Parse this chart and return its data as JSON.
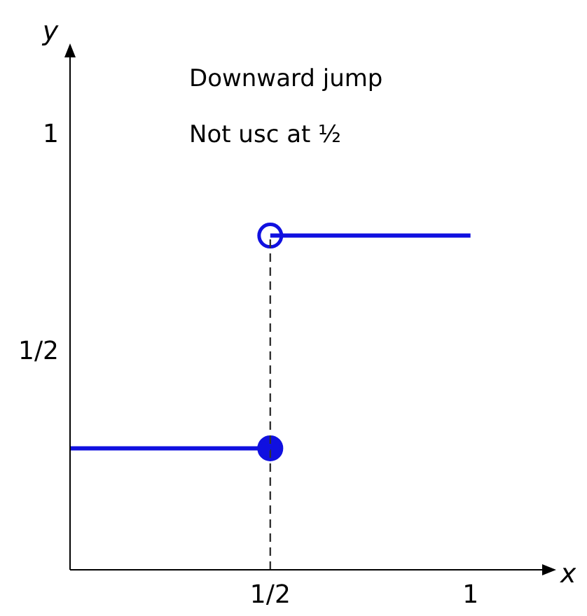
{
  "chart_data": {
    "type": "line",
    "xlabel": "x",
    "ylabel": "y",
    "annotations": [
      "Downward jump",
      "Not usc at ½"
    ],
    "xlim": [
      0,
      1.2
    ],
    "ylim": [
      0,
      1.2
    ],
    "xticks": [
      {
        "value": 0.5,
        "label": "1/2"
      },
      1
    ],
    "yticks": [
      {
        "value": 0.5,
        "label": "1/2"
      },
      1
    ],
    "grid": false,
    "legend": false,
    "series": [
      {
        "type": "line",
        "color": "#1010e0",
        "x": [
          0,
          0.5
        ],
        "values": [
          0.28,
          0.28
        ],
        "marker": "none"
      },
      {
        "type": "line",
        "color": "#1010e0",
        "x": [
          0.5,
          1
        ],
        "values": [
          0.77,
          0.77
        ],
        "marker": "none"
      },
      {
        "type": "line",
        "color": "#333333",
        "x": [
          0.5,
          0.5
        ],
        "values": [
          0,
          0.77
        ],
        "marker": "none",
        "line_style": "dashed"
      },
      {
        "type": "scatter",
        "color": "#1010e0",
        "x": [
          0.5
        ],
        "values": [
          0.28
        ],
        "marker": "circle"
      },
      {
        "type": "scatter",
        "color": "#1010e0",
        "colors": [
          "#ffffff"
        ],
        "x": [
          0.5
        ],
        "values": [
          0.77
        ],
        "marker": "circle"
      }
    ]
  }
}
